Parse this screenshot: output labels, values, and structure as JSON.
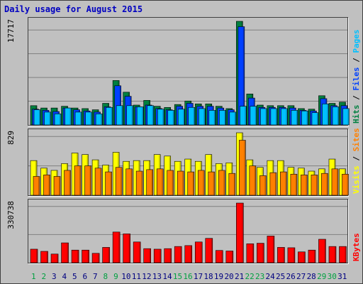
{
  "title": "Daily usage for August 2015",
  "colors": {
    "background": "#c0c0c0",
    "hits": "#008040",
    "files": "#0040ff",
    "pages": "#00c0ff",
    "visits": "#ffff00",
    "sites": "#ff8000",
    "kbytes": "#ff0000",
    "title": "#0000c0",
    "weekend_day": "#00a040",
    "weekday": "#000080"
  },
  "chart_data": [
    {
      "type": "bar",
      "panel": "top",
      "y_max_label": "17717",
      "ylim": [
        0,
        17717
      ],
      "series_label_parts": [
        "Pages",
        "Files",
        "Hits"
      ],
      "categories": [
        "1",
        "2",
        "3",
        "4",
        "5",
        "6",
        "7",
        "8",
        "9",
        "10",
        "11",
        "12",
        "13",
        "14",
        "15",
        "16",
        "17",
        "18",
        "19",
        "20",
        "21",
        "22",
        "23",
        "24",
        "25",
        "26",
        "27",
        "28",
        "29",
        "30",
        "31"
      ],
      "series": [
        {
          "name": "Hits",
          "values": [
            3300,
            2900,
            2900,
            3200,
            2900,
            2800,
            2600,
            3700,
            7600,
            5600,
            3400,
            4200,
            3200,
            3000,
            3500,
            4100,
            3600,
            3600,
            3200,
            2800,
            17717,
            5300,
            3400,
            3300,
            3300,
            3300,
            2800,
            2700,
            5000,
            3700,
            3900
          ]
        },
        {
          "name": "Files",
          "values": [
            2700,
            2500,
            2300,
            2900,
            2600,
            2400,
            2200,
            3100,
            6700,
            4900,
            3100,
            3400,
            2800,
            2600,
            3200,
            3700,
            3200,
            3200,
            2900,
            2600,
            16800,
            4600,
            3000,
            3000,
            3000,
            2900,
            2500,
            2400,
            4500,
            3300,
            3300
          ]
        },
        {
          "name": "Pages",
          "values": [
            2600,
            2200,
            1900,
            2900,
            2200,
            2200,
            1900,
            3000,
            3300,
            3300,
            3100,
            3300,
            2700,
            2500,
            2700,
            3000,
            2800,
            2500,
            2500,
            2200,
            3200,
            3200,
            2800,
            2800,
            2800,
            2500,
            2400,
            2100,
            3600,
            3100,
            2800
          ]
        }
      ]
    },
    {
      "type": "bar",
      "panel": "middle",
      "y_max_label": "829",
      "ylim": [
        0,
        829
      ],
      "series_label_parts": [
        "Sites",
        "Visits"
      ],
      "categories": [
        "1",
        "2",
        "3",
        "4",
        "5",
        "6",
        "7",
        "8",
        "9",
        "10",
        "11",
        "12",
        "13",
        "14",
        "15",
        "16",
        "17",
        "18",
        "19",
        "20",
        "21",
        "22",
        "23",
        "24",
        "25",
        "26",
        "27",
        "28",
        "29",
        "30",
        "31"
      ],
      "series": [
        {
          "name": "Visits",
          "values": [
            460,
            360,
            330,
            420,
            560,
            540,
            470,
            400,
            570,
            450,
            460,
            460,
            540,
            520,
            450,
            480,
            450,
            540,
            420,
            430,
            829,
            470,
            370,
            460,
            460,
            370,
            360,
            320,
            350,
            480,
            350
          ]
        },
        {
          "name": "Sites",
          "values": [
            250,
            270,
            250,
            330,
            390,
            390,
            360,
            310,
            370,
            350,
            320,
            340,
            350,
            330,
            320,
            310,
            330,
            310,
            330,
            290,
            730,
            390,
            260,
            300,
            310,
            280,
            270,
            270,
            290,
            350,
            280
          ]
        }
      ]
    },
    {
      "type": "bar",
      "panel": "bottom",
      "y_max_label": "330738",
      "ylim": [
        0,
        330738
      ],
      "series_label_parts": [
        "KBytes"
      ],
      "categories": [
        "1",
        "2",
        "3",
        "4",
        "5",
        "6",
        "7",
        "8",
        "9",
        "10",
        "11",
        "12",
        "13",
        "14",
        "15",
        "16",
        "17",
        "18",
        "19",
        "20",
        "21",
        "22",
        "23",
        "24",
        "25",
        "26",
        "27",
        "28",
        "29",
        "30",
        "31"
      ],
      "series": [
        {
          "name": "KBytes",
          "values": [
            75000,
            63000,
            48000,
            110000,
            70000,
            70000,
            52000,
            85000,
            170000,
            160000,
            115000,
            78000,
            75000,
            78000,
            90000,
            95000,
            115000,
            135000,
            68000,
            65000,
            330738,
            105000,
            108000,
            148000,
            85000,
            83000,
            60000,
            70000,
            130000,
            90000,
            90000
          ]
        }
      ]
    }
  ],
  "x_axis": {
    "labels": [
      "1",
      "2",
      "3",
      "4",
      "5",
      "6",
      "7",
      "8",
      "9",
      "10",
      "11",
      "12",
      "13",
      "14",
      "15",
      "16",
      "17",
      "18",
      "19",
      "20",
      "21",
      "22",
      "23",
      "24",
      "25",
      "26",
      "27",
      "28",
      "29",
      "30",
      "31"
    ],
    "weekend_days": [
      "1",
      "2",
      "8",
      "9",
      "15",
      "16",
      "22",
      "23",
      "29",
      "30"
    ]
  }
}
